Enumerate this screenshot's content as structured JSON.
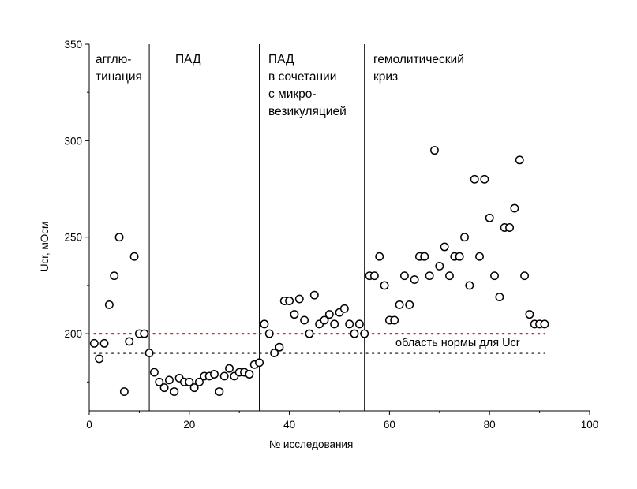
{
  "chart_data": {
    "type": "scatter",
    "xlabel": "№ исследования",
    "ylabel": "Ucr, мОсм",
    "xlim": [
      0,
      100
    ],
    "ylim": [
      160,
      350
    ],
    "xticks": [
      0,
      20,
      40,
      60,
      80,
      100
    ],
    "yticks": [
      200,
      250,
      300,
      350
    ],
    "grid": false,
    "points": [
      [
        1,
        195
      ],
      [
        2,
        187
      ],
      [
        3,
        195
      ],
      [
        4,
        215
      ],
      [
        5,
        230
      ],
      [
        6,
        250
      ],
      [
        7,
        170
      ],
      [
        8,
        196
      ],
      [
        9,
        240
      ],
      [
        10,
        200
      ],
      [
        11,
        200
      ],
      [
        12,
        190
      ],
      [
        13,
        180
      ],
      [
        14,
        175
      ],
      [
        15,
        172
      ],
      [
        16,
        176
      ],
      [
        17,
        170
      ],
      [
        18,
        177
      ],
      [
        19,
        175
      ],
      [
        20,
        175
      ],
      [
        21,
        172
      ],
      [
        22,
        175
      ],
      [
        23,
        178
      ],
      [
        24,
        178
      ],
      [
        25,
        179
      ],
      [
        26,
        170
      ],
      [
        27,
        178
      ],
      [
        28,
        182
      ],
      [
        29,
        178
      ],
      [
        30,
        180
      ],
      [
        31,
        180
      ],
      [
        32,
        179
      ],
      [
        33,
        184
      ],
      [
        34,
        185
      ],
      [
        35,
        205
      ],
      [
        36,
        200
      ],
      [
        37,
        190
      ],
      [
        38,
        193
      ],
      [
        39,
        217
      ],
      [
        40,
        217
      ],
      [
        41,
        210
      ],
      [
        42,
        218
      ],
      [
        43,
        207
      ],
      [
        44,
        200
      ],
      [
        45,
        220
      ],
      [
        46,
        205
      ],
      [
        47,
        207
      ],
      [
        48,
        210
      ],
      [
        49,
        205
      ],
      [
        50,
        211
      ],
      [
        51,
        213
      ],
      [
        52,
        205
      ],
      [
        53,
        200
      ],
      [
        54,
        205
      ],
      [
        55,
        200
      ],
      [
        56,
        230
      ],
      [
        57,
        230
      ],
      [
        58,
        240
      ],
      [
        59,
        225
      ],
      [
        60,
        207
      ],
      [
        61,
        207
      ],
      [
        62,
        215
      ],
      [
        63,
        230
      ],
      [
        64,
        215
      ],
      [
        65,
        228
      ],
      [
        66,
        240
      ],
      [
        67,
        240
      ],
      [
        68,
        230
      ],
      [
        69,
        295
      ],
      [
        70,
        235
      ],
      [
        71,
        245
      ],
      [
        72,
        230
      ],
      [
        73,
        240
      ],
      [
        74,
        240
      ],
      [
        75,
        250
      ],
      [
        76,
        225
      ],
      [
        77,
        280
      ],
      [
        78,
        240
      ],
      [
        79,
        280
      ],
      [
        80,
        260
      ],
      [
        81,
        230
      ],
      [
        82,
        219
      ],
      [
        83,
        255
      ],
      [
        84,
        255
      ],
      [
        85,
        265
      ],
      [
        86,
        290
      ],
      [
        87,
        230
      ],
      [
        88,
        210
      ],
      [
        89,
        205
      ],
      [
        90,
        205
      ],
      [
        91,
        205
      ]
    ],
    "vertical_lines": [
      12,
      34,
      55
    ],
    "reference_lines": [
      {
        "y": 200,
        "color": "#e02020",
        "style": "dotted"
      },
      {
        "y": 190,
        "color": "#000000",
        "style": "dotted"
      }
    ],
    "region_labels": [
      {
        "lines": [
          "агглю-",
          "тинация"
        ],
        "x": 1
      },
      {
        "lines": [
          "ПАД"
        ],
        "x": 17
      },
      {
        "lines": [
          "ПАД",
          "в сочетании",
          "с микро-",
          "везикуляцией"
        ],
        "x": 35
      },
      {
        "lines": [
          "гемолитический",
          "криз"
        ],
        "x": 56
      }
    ],
    "annotation": "область нормы для Ucr"
  }
}
